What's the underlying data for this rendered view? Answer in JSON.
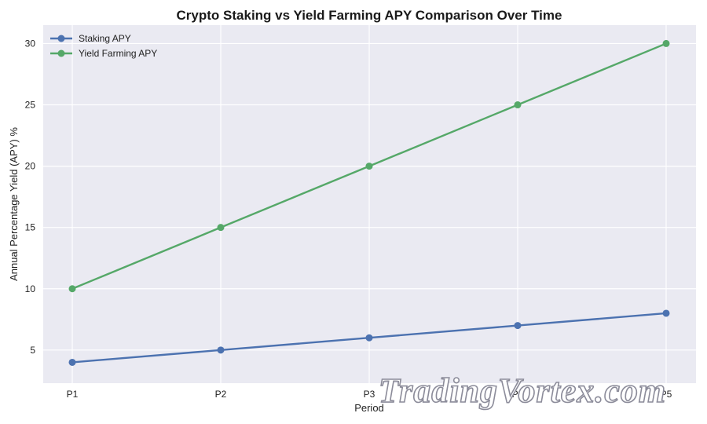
{
  "chart_data": {
    "type": "line",
    "title": "Crypto Staking vs Yield Farming APY Comparison Over Time",
    "xlabel": "Period",
    "ylabel": "Annual Percentage Yield (APY) %",
    "categories": [
      "P1",
      "P2",
      "P3",
      "P4",
      "P5"
    ],
    "ylim": [
      2.3,
      31.5
    ],
    "yticks": [
      5,
      10,
      15,
      20,
      25,
      30
    ],
    "grid": true,
    "legend_position": "top-left",
    "series": [
      {
        "name": "Staking APY",
        "values": [
          4,
          5,
          6,
          7,
          8
        ],
        "color": "#4c72b0"
      },
      {
        "name": "Yield Farming APY",
        "values": [
          10,
          15,
          20,
          25,
          30
        ],
        "color": "#55a868"
      }
    ]
  },
  "watermark": {
    "text": "TradingVortex.com"
  },
  "colors": {
    "plot_background": "#eaeaf2",
    "grid": "#ffffff"
  }
}
